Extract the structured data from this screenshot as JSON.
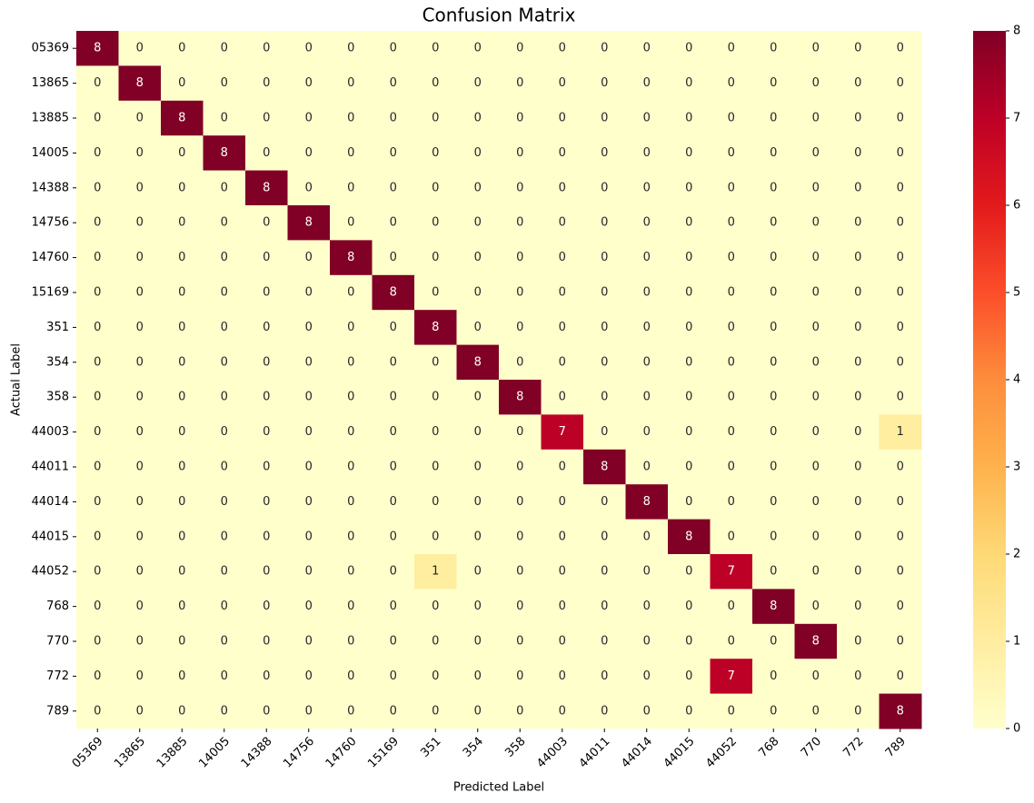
{
  "chart_data": {
    "type": "heatmap",
    "title": "Confusion Matrix",
    "xlabel": "Predicted Label",
    "ylabel": "Actual Label",
    "x_categories": [
      "05369",
      "13865",
      "13885",
      "14005",
      "14388",
      "14756",
      "14760",
      "15169",
      "351",
      "354",
      "358",
      "44003",
      "44011",
      "44014",
      "44015",
      "44052",
      "768",
      "770",
      "772",
      "789"
    ],
    "y_categories": [
      "05369",
      "13865",
      "13885",
      "14005",
      "14388",
      "14756",
      "14760",
      "15169",
      "351",
      "354",
      "358",
      "44003",
      "44011",
      "44014",
      "44015",
      "44052",
      "768",
      "770",
      "772",
      "789"
    ],
    "values": [
      [
        8,
        0,
        0,
        0,
        0,
        0,
        0,
        0,
        0,
        0,
        0,
        0,
        0,
        0,
        0,
        0,
        0,
        0,
        0,
        0
      ],
      [
        0,
        8,
        0,
        0,
        0,
        0,
        0,
        0,
        0,
        0,
        0,
        0,
        0,
        0,
        0,
        0,
        0,
        0,
        0,
        0
      ],
      [
        0,
        0,
        8,
        0,
        0,
        0,
        0,
        0,
        0,
        0,
        0,
        0,
        0,
        0,
        0,
        0,
        0,
        0,
        0,
        0
      ],
      [
        0,
        0,
        0,
        8,
        0,
        0,
        0,
        0,
        0,
        0,
        0,
        0,
        0,
        0,
        0,
        0,
        0,
        0,
        0,
        0
      ],
      [
        0,
        0,
        0,
        0,
        8,
        0,
        0,
        0,
        0,
        0,
        0,
        0,
        0,
        0,
        0,
        0,
        0,
        0,
        0,
        0
      ],
      [
        0,
        0,
        0,
        0,
        0,
        8,
        0,
        0,
        0,
        0,
        0,
        0,
        0,
        0,
        0,
        0,
        0,
        0,
        0,
        0
      ],
      [
        0,
        0,
        0,
        0,
        0,
        0,
        8,
        0,
        0,
        0,
        0,
        0,
        0,
        0,
        0,
        0,
        0,
        0,
        0,
        0
      ],
      [
        0,
        0,
        0,
        0,
        0,
        0,
        0,
        8,
        0,
        0,
        0,
        0,
        0,
        0,
        0,
        0,
        0,
        0,
        0,
        0
      ],
      [
        0,
        0,
        0,
        0,
        0,
        0,
        0,
        0,
        8,
        0,
        0,
        0,
        0,
        0,
        0,
        0,
        0,
        0,
        0,
        0
      ],
      [
        0,
        0,
        0,
        0,
        0,
        0,
        0,
        0,
        0,
        8,
        0,
        0,
        0,
        0,
        0,
        0,
        0,
        0,
        0,
        0
      ],
      [
        0,
        0,
        0,
        0,
        0,
        0,
        0,
        0,
        0,
        0,
        8,
        0,
        0,
        0,
        0,
        0,
        0,
        0,
        0,
        0
      ],
      [
        0,
        0,
        0,
        0,
        0,
        0,
        0,
        0,
        0,
        0,
        0,
        7,
        0,
        0,
        0,
        0,
        0,
        0,
        0,
        1
      ],
      [
        0,
        0,
        0,
        0,
        0,
        0,
        0,
        0,
        0,
        0,
        0,
        0,
        8,
        0,
        0,
        0,
        0,
        0,
        0,
        0
      ],
      [
        0,
        0,
        0,
        0,
        0,
        0,
        0,
        0,
        0,
        0,
        0,
        0,
        0,
        8,
        0,
        0,
        0,
        0,
        0,
        0
      ],
      [
        0,
        0,
        0,
        0,
        0,
        0,
        0,
        0,
        0,
        0,
        0,
        0,
        0,
        0,
        8,
        0,
        0,
        0,
        0,
        0
      ],
      [
        0,
        0,
        0,
        0,
        0,
        0,
        0,
        0,
        1,
        0,
        0,
        0,
        0,
        0,
        0,
        7,
        0,
        0,
        0,
        0
      ],
      [
        0,
        0,
        0,
        0,
        0,
        0,
        0,
        0,
        0,
        0,
        0,
        0,
        0,
        0,
        0,
        0,
        8,
        0,
        0,
        0
      ],
      [
        0,
        0,
        0,
        0,
        0,
        0,
        0,
        0,
        0,
        0,
        0,
        0,
        0,
        0,
        0,
        0,
        0,
        8,
        0,
        0
      ],
      [
        0,
        0,
        0,
        0,
        0,
        0,
        0,
        0,
        0,
        0,
        0,
        0,
        0,
        0,
        0,
        7,
        0,
        0,
        0,
        0
      ],
      [
        0,
        0,
        0,
        0,
        0,
        0,
        0,
        0,
        0,
        0,
        0,
        0,
        0,
        0,
        0,
        0,
        0,
        0,
        0,
        8
      ]
    ],
    "colormap": "YlOrRd",
    "clim": [
      0,
      8
    ],
    "cticks": [
      0,
      1,
      2,
      3,
      4,
      5,
      6,
      7,
      8
    ]
  }
}
